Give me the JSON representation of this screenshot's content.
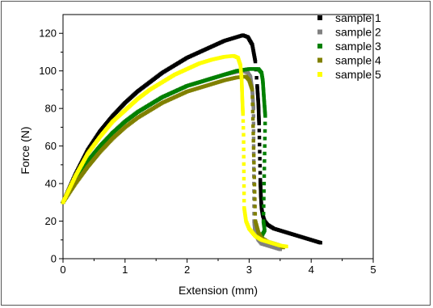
{
  "chart_data": {
    "type": "scatter",
    "xlabel": "Extension (mm)",
    "ylabel": "Force (N)",
    "xlim": [
      0,
      5
    ],
    "ylim": [
      0,
      130
    ],
    "xticks": [
      "0",
      "1",
      "2",
      "3",
      "4",
      "5"
    ],
    "yticks": [
      "0",
      "20",
      "40",
      "60",
      "80",
      "100",
      "120"
    ],
    "legend_position": "top-right",
    "grid": false,
    "series": [
      {
        "name": "sample 1",
        "color": "#000000",
        "points": [
          [
            0,
            30
          ],
          [
            0.2,
            45
          ],
          [
            0.4,
            58
          ],
          [
            0.6,
            68
          ],
          [
            0.8,
            76
          ],
          [
            1.0,
            83
          ],
          [
            1.2,
            89
          ],
          [
            1.4,
            94
          ],
          [
            1.6,
            99
          ],
          [
            1.8,
            103
          ],
          [
            2.0,
            107
          ],
          [
            2.2,
            110
          ],
          [
            2.4,
            113
          ],
          [
            2.6,
            116
          ],
          [
            2.8,
            118
          ],
          [
            2.9,
            119
          ],
          [
            2.98,
            118
          ],
          [
            3.05,
            114
          ],
          [
            3.1,
            105
          ],
          [
            3.13,
            92
          ],
          [
            3.15,
            82
          ],
          [
            3.16,
            72
          ],
          [
            3.17,
            57
          ],
          [
            3.18,
            42
          ],
          [
            3.19,
            33
          ],
          [
            3.2,
            27
          ],
          [
            3.22,
            23
          ],
          [
            3.25,
            20
          ],
          [
            3.3,
            18
          ],
          [
            3.4,
            16
          ],
          [
            3.5,
            15
          ],
          [
            3.6,
            14
          ],
          [
            3.7,
            13
          ],
          [
            3.8,
            12
          ],
          [
            3.9,
            11
          ],
          [
            4.0,
            10
          ],
          [
            4.1,
            9
          ],
          [
            4.15,
            8.5
          ]
        ]
      },
      {
        "name": "sample 2",
        "color": "#808080",
        "points": [
          [
            0,
            30
          ],
          [
            0.2,
            42
          ],
          [
            0.4,
            52
          ],
          [
            0.6,
            60
          ],
          [
            0.8,
            67
          ],
          [
            1.0,
            73
          ],
          [
            1.2,
            78
          ],
          [
            1.4,
            82
          ],
          [
            1.6,
            86
          ],
          [
            1.8,
            89
          ],
          [
            2.0,
            92
          ],
          [
            2.2,
            94
          ],
          [
            2.4,
            96
          ],
          [
            2.6,
            98
          ],
          [
            2.8,
            99.5
          ],
          [
            2.9,
            100
          ],
          [
            2.98,
            99
          ],
          [
            3.02,
            97
          ],
          [
            3.05,
            90
          ],
          [
            3.07,
            80
          ],
          [
            3.08,
            20
          ],
          [
            3.1,
            13
          ],
          [
            3.15,
            10
          ],
          [
            3.2,
            8
          ],
          [
            3.3,
            7
          ],
          [
            3.4,
            6
          ],
          [
            3.5,
            5
          ]
        ]
      },
      {
        "name": "sample 3",
        "color": "#008000",
        "points": [
          [
            0,
            30
          ],
          [
            0.2,
            42
          ],
          [
            0.4,
            52
          ],
          [
            0.6,
            60
          ],
          [
            0.8,
            67
          ],
          [
            1.0,
            73
          ],
          [
            1.2,
            78
          ],
          [
            1.4,
            82
          ],
          [
            1.6,
            86
          ],
          [
            1.8,
            89
          ],
          [
            2.0,
            92
          ],
          [
            2.2,
            94
          ],
          [
            2.4,
            96
          ],
          [
            2.6,
            98
          ],
          [
            2.8,
            100
          ],
          [
            3.0,
            101
          ],
          [
            3.15,
            101
          ],
          [
            3.2,
            99
          ],
          [
            3.22,
            95
          ],
          [
            3.24,
            85
          ],
          [
            3.26,
            76
          ],
          [
            3.23,
            20
          ],
          [
            3.25,
            15
          ],
          [
            3.2,
            12
          ]
        ]
      },
      {
        "name": "sample 4",
        "color": "#808000",
        "points": [
          [
            0,
            30
          ],
          [
            0.2,
            40
          ],
          [
            0.4,
            49
          ],
          [
            0.6,
            57
          ],
          [
            0.8,
            64
          ],
          [
            1.0,
            70
          ],
          [
            1.2,
            75
          ],
          [
            1.4,
            79
          ],
          [
            1.6,
            83
          ],
          [
            1.8,
            86
          ],
          [
            2.0,
            89
          ],
          [
            2.2,
            91
          ],
          [
            2.4,
            93
          ],
          [
            2.6,
            95
          ],
          [
            2.8,
            96.5
          ],
          [
            2.95,
            97
          ],
          [
            3.0,
            95
          ],
          [
            3.05,
            90
          ],
          [
            3.1,
            20
          ],
          [
            3.15,
            14
          ],
          [
            3.2,
            11
          ],
          [
            3.3,
            9
          ],
          [
            3.4,
            8
          ],
          [
            3.5,
            7
          ],
          [
            3.55,
            6
          ]
        ]
      },
      {
        "name": "sample 5",
        "color": "#ffff00",
        "points": [
          [
            0,
            30
          ],
          [
            0.2,
            44
          ],
          [
            0.4,
            56
          ],
          [
            0.6,
            65
          ],
          [
            0.8,
            73
          ],
          [
            1.0,
            79
          ],
          [
            1.2,
            85
          ],
          [
            1.4,
            90
          ],
          [
            1.6,
            94
          ],
          [
            1.8,
            98
          ],
          [
            2.0,
            101
          ],
          [
            2.2,
            104
          ],
          [
            2.4,
            106
          ],
          [
            2.6,
            107.5
          ],
          [
            2.75,
            108
          ],
          [
            2.82,
            107
          ],
          [
            2.86,
            103
          ],
          [
            2.88,
            95
          ],
          [
            2.89,
            85
          ],
          [
            2.9,
            77
          ],
          [
            2.91,
            66
          ],
          [
            2.92,
            27
          ],
          [
            2.95,
            20
          ],
          [
            3.0,
            16
          ],
          [
            3.1,
            12
          ],
          [
            3.2,
            10
          ],
          [
            3.3,
            9
          ],
          [
            3.4,
            8
          ],
          [
            3.5,
            7
          ],
          [
            3.6,
            6.5
          ]
        ]
      }
    ]
  }
}
